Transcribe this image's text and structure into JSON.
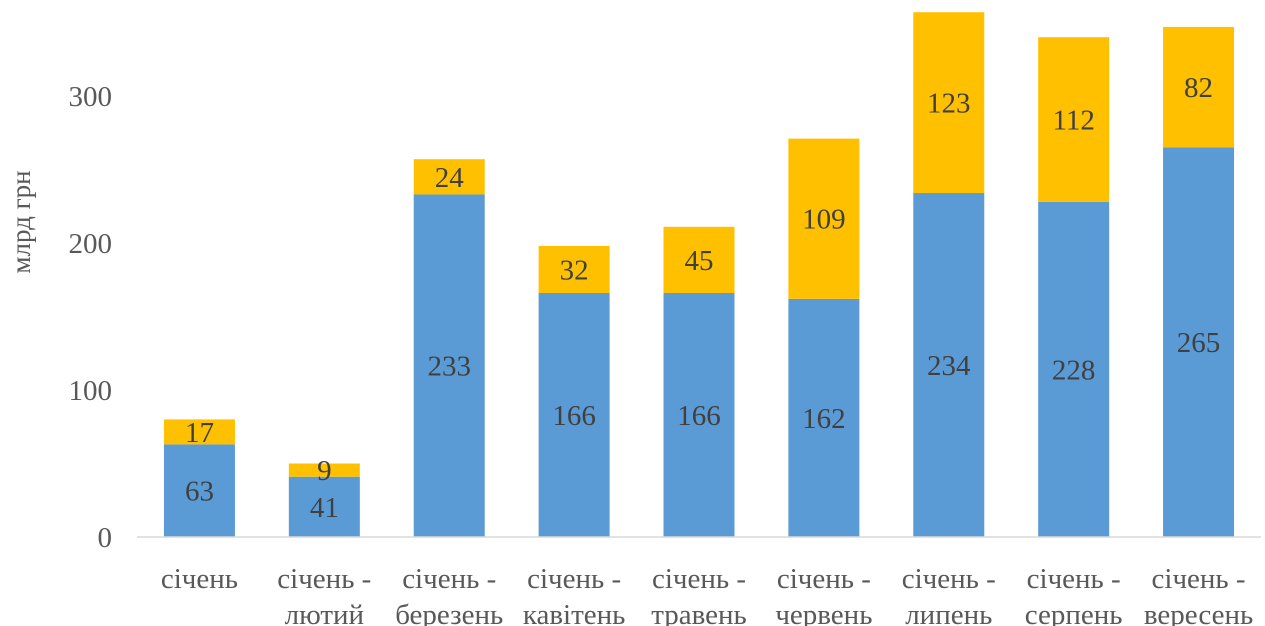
{
  "chart_data": {
    "type": "bar",
    "stacked": true,
    "categories": [
      [
        "січень"
      ],
      [
        "січень -",
        "лютий"
      ],
      [
        "січень -",
        "березень"
      ],
      [
        "січень -",
        "кавітень"
      ],
      [
        "січень -",
        "травень"
      ],
      [
        "січень -",
        "червень"
      ],
      [
        "січень -",
        "липень"
      ],
      [
        "січень -",
        "серпень"
      ],
      [
        "січень -",
        "вересень"
      ]
    ],
    "series": [
      {
        "color": "#5B9BD5",
        "values": [
          63,
          41,
          233,
          166,
          166,
          162,
          234,
          228,
          265
        ]
      },
      {
        "color": "#FFC000",
        "values": [
          17,
          9,
          24,
          32,
          45,
          109,
          123,
          112,
          82
        ]
      }
    ],
    "ylabel": "млрд грн",
    "ylim": [
      0,
      360
    ],
    "yticks": [
      0,
      100,
      200,
      300
    ],
    "grid": false,
    "data_labels": true
  }
}
